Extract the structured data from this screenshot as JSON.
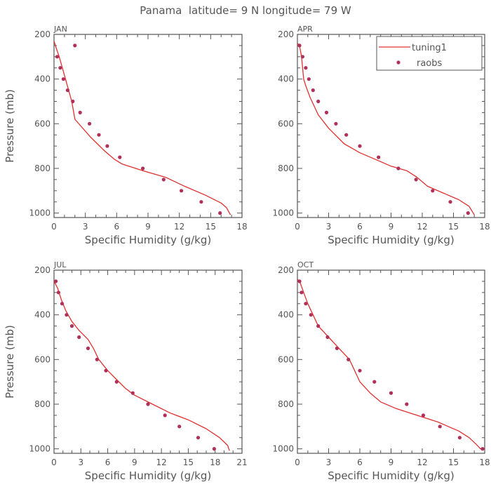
{
  "figure": {
    "title": "Panama  latitude= 9 N longitude= 79 W",
    "line_color": "#e03030",
    "marker_color": "#b0305a",
    "axis_color": "#555555"
  },
  "chart_data": [
    {
      "type": "line",
      "panel_label": "JAN",
      "xlabel": "Specific Humidity (g/kg)",
      "ylabel": "Pressure (mb)",
      "xlim": [
        0,
        18
      ],
      "ylim": [
        200,
        1020
      ],
      "y_reversed": true,
      "xticks": [
        0,
        3,
        6,
        9,
        12,
        15,
        18
      ],
      "yticks": [
        200,
        400,
        600,
        800,
        1000
      ],
      "series": [
        {
          "name": "tuning1",
          "type": "line",
          "x": [
            0.0,
            0.2,
            0.5,
            0.8,
            1.1,
            1.4,
            1.7,
            2.0,
            3.5,
            4.8,
            5.8,
            6.5,
            8.5,
            10.7,
            12.5,
            14.5,
            16.0,
            16.5,
            16.9
          ],
          "y": [
            230,
            260,
            300,
            350,
            400,
            450,
            500,
            580,
            660,
            720,
            760,
            780,
            810,
            840,
            880,
            920,
            955,
            975,
            1008
          ]
        },
        {
          "name": "raobs",
          "type": "scatter",
          "x": [
            2.0,
            0.3,
            0.6,
            0.9,
            1.3,
            1.8,
            2.5,
            3.4,
            4.3,
            5.1,
            6.3,
            8.5,
            10.5,
            12.2,
            14.1,
            15.9
          ],
          "y": [
            250,
            300,
            350,
            400,
            450,
            500,
            550,
            600,
            650,
            700,
            750,
            800,
            850,
            900,
            950,
            1000
          ]
        }
      ]
    },
    {
      "type": "line",
      "panel_label": "APR",
      "xlabel": "Specific Humidity (g/kg)",
      "ylabel": "",
      "xlim": [
        0,
        18
      ],
      "ylim": [
        200,
        1020
      ],
      "y_reversed": true,
      "xticks": [
        0,
        3,
        6,
        9,
        12,
        15,
        18
      ],
      "yticks": [
        200,
        400,
        600,
        800,
        1000
      ],
      "legend": {
        "placement": "top-right",
        "entries": [
          "tuning1",
          "raobs"
        ]
      },
      "series": [
        {
          "name": "tuning1",
          "type": "line",
          "x": [
            0.0,
            0.2,
            0.4,
            0.5,
            0.6,
            0.8,
            1.2,
            2.0,
            3.0,
            4.5,
            6.0,
            7.5,
            9.0,
            10.5,
            11.5,
            12.5,
            14.0,
            15.5,
            16.5,
            17.0
          ],
          "y": [
            240,
            250,
            300,
            350,
            400,
            430,
            480,
            560,
            620,
            690,
            730,
            760,
            790,
            810,
            840,
            880,
            910,
            940,
            970,
            1008
          ]
        },
        {
          "name": "raobs",
          "type": "scatter",
          "x": [
            0.2,
            0.5,
            0.8,
            1.1,
            1.5,
            2.0,
            2.8,
            3.7,
            4.7,
            6.0,
            7.8,
            9.7,
            11.4,
            13.0,
            14.7,
            16.4
          ],
          "y": [
            250,
            300,
            350,
            400,
            450,
            500,
            550,
            600,
            650,
            700,
            750,
            800,
            850,
            900,
            950,
            1000
          ]
        }
      ]
    },
    {
      "type": "line",
      "panel_label": "JUL",
      "xlabel": "Specific Humidity (g/kg)",
      "ylabel": "Pressure (mb)",
      "xlim": [
        0,
        21
      ],
      "ylim": [
        200,
        1020
      ],
      "y_reversed": true,
      "xticks": [
        0,
        3,
        6,
        9,
        12,
        15,
        18,
        21
      ],
      "yticks": [
        200,
        400,
        600,
        800,
        1000
      ],
      "series": [
        {
          "name": "tuning1",
          "type": "line",
          "x": [
            0.0,
            0.4,
            0.8,
            1.3,
            2.0,
            2.8,
            3.8,
            4.4,
            5.0,
            6.0,
            7.0,
            8.0,
            9.0,
            11.0,
            13.0,
            15.0,
            17.0,
            18.5,
            19.4,
            19.6
          ],
          "y": [
            250,
            280,
            330,
            380,
            430,
            470,
            510,
            550,
            600,
            650,
            690,
            730,
            760,
            800,
            840,
            870,
            910,
            950,
            985,
            1008
          ]
        },
        {
          "name": "raobs",
          "type": "scatter",
          "x": [
            0.2,
            0.5,
            0.9,
            1.4,
            2.0,
            2.8,
            3.8,
            4.8,
            5.8,
            7.0,
            8.8,
            10.5,
            12.4,
            14.0,
            16.1,
            17.9
          ],
          "y": [
            250,
            300,
            350,
            400,
            450,
            500,
            550,
            600,
            650,
            700,
            750,
            800,
            850,
            900,
            950,
            1000
          ]
        }
      ]
    },
    {
      "type": "line",
      "panel_label": "OCT",
      "xlabel": "Specific Humidity (g/kg)",
      "ylabel": "",
      "xlim": [
        0,
        18
      ],
      "ylim": [
        200,
        1020
      ],
      "y_reversed": true,
      "xticks": [
        0,
        3,
        6,
        9,
        12,
        15,
        18
      ],
      "yticks": [
        200,
        400,
        600,
        800,
        1000
      ],
      "series": [
        {
          "name": "tuning1",
          "type": "line",
          "x": [
            0.0,
            0.3,
            0.6,
            1.0,
            1.5,
            2.0,
            3.0,
            4.0,
            5.0,
            5.5,
            6.0,
            7.0,
            8.0,
            9.5,
            11.5,
            13.5,
            15.5,
            16.5,
            17.2,
            17.6
          ],
          "y": [
            240,
            260,
            300,
            350,
            400,
            450,
            500,
            550,
            600,
            650,
            700,
            750,
            790,
            820,
            850,
            880,
            920,
            950,
            980,
            1000
          ]
        },
        {
          "name": "raobs",
          "type": "scatter",
          "x": [
            0.2,
            0.4,
            0.8,
            1.3,
            2.0,
            2.9,
            3.8,
            4.9,
            6.0,
            7.4,
            9.0,
            10.5,
            12.1,
            13.7,
            15.6,
            17.8
          ],
          "y": [
            250,
            300,
            350,
            400,
            450,
            500,
            550,
            600,
            650,
            700,
            750,
            800,
            850,
            900,
            950,
            1000
          ]
        }
      ]
    }
  ]
}
